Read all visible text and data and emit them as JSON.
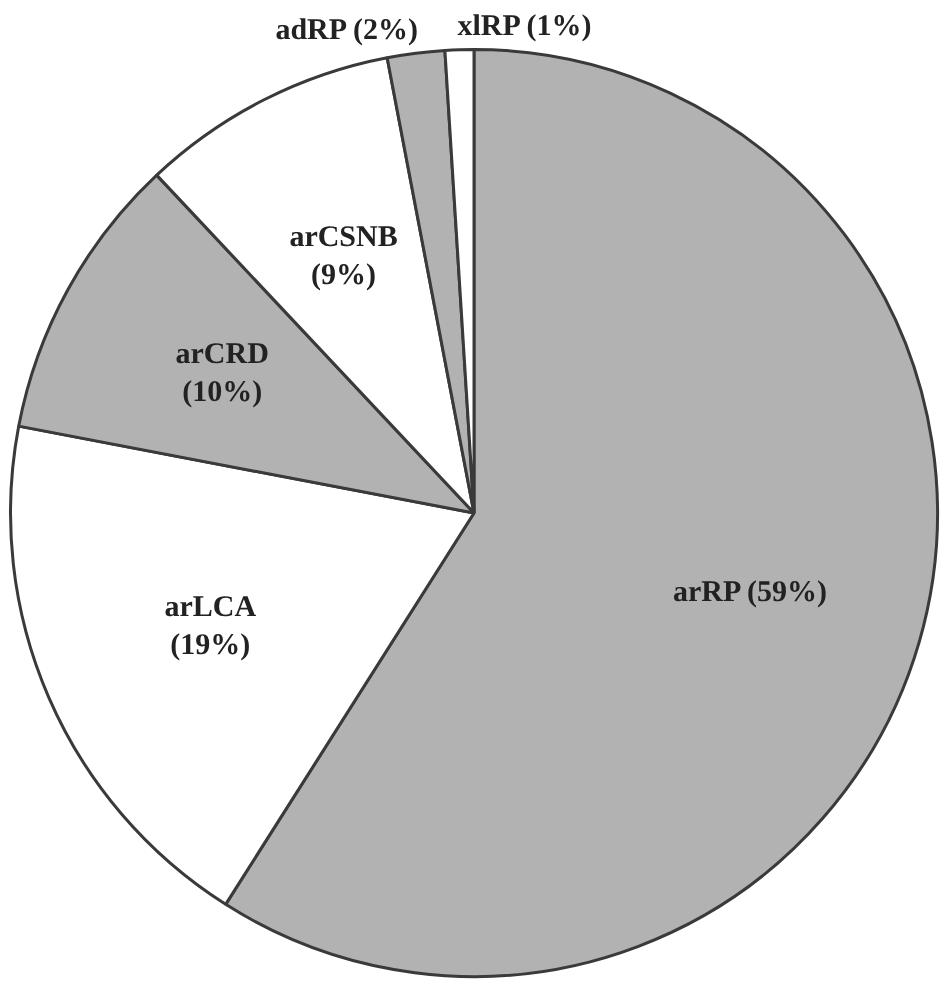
{
  "chart_data": {
    "type": "pie",
    "categories": [
      "arRP",
      "arLCA",
      "arCRD",
      "arCSNB",
      "adRP",
      "xlRP"
    ],
    "values": [
      59,
      19,
      10,
      9,
      2,
      1
    ],
    "value_labels": [
      "(59%)",
      "(19%)",
      "(10%)",
      "(9%)",
      "(2%)",
      "(1%)"
    ],
    "colors": [
      "#b2b2b2",
      "#ffffff",
      "#b2b2b2",
      "#ffffff",
      "#b2b2b2",
      "#ffffff"
    ],
    "legend": false
  }
}
